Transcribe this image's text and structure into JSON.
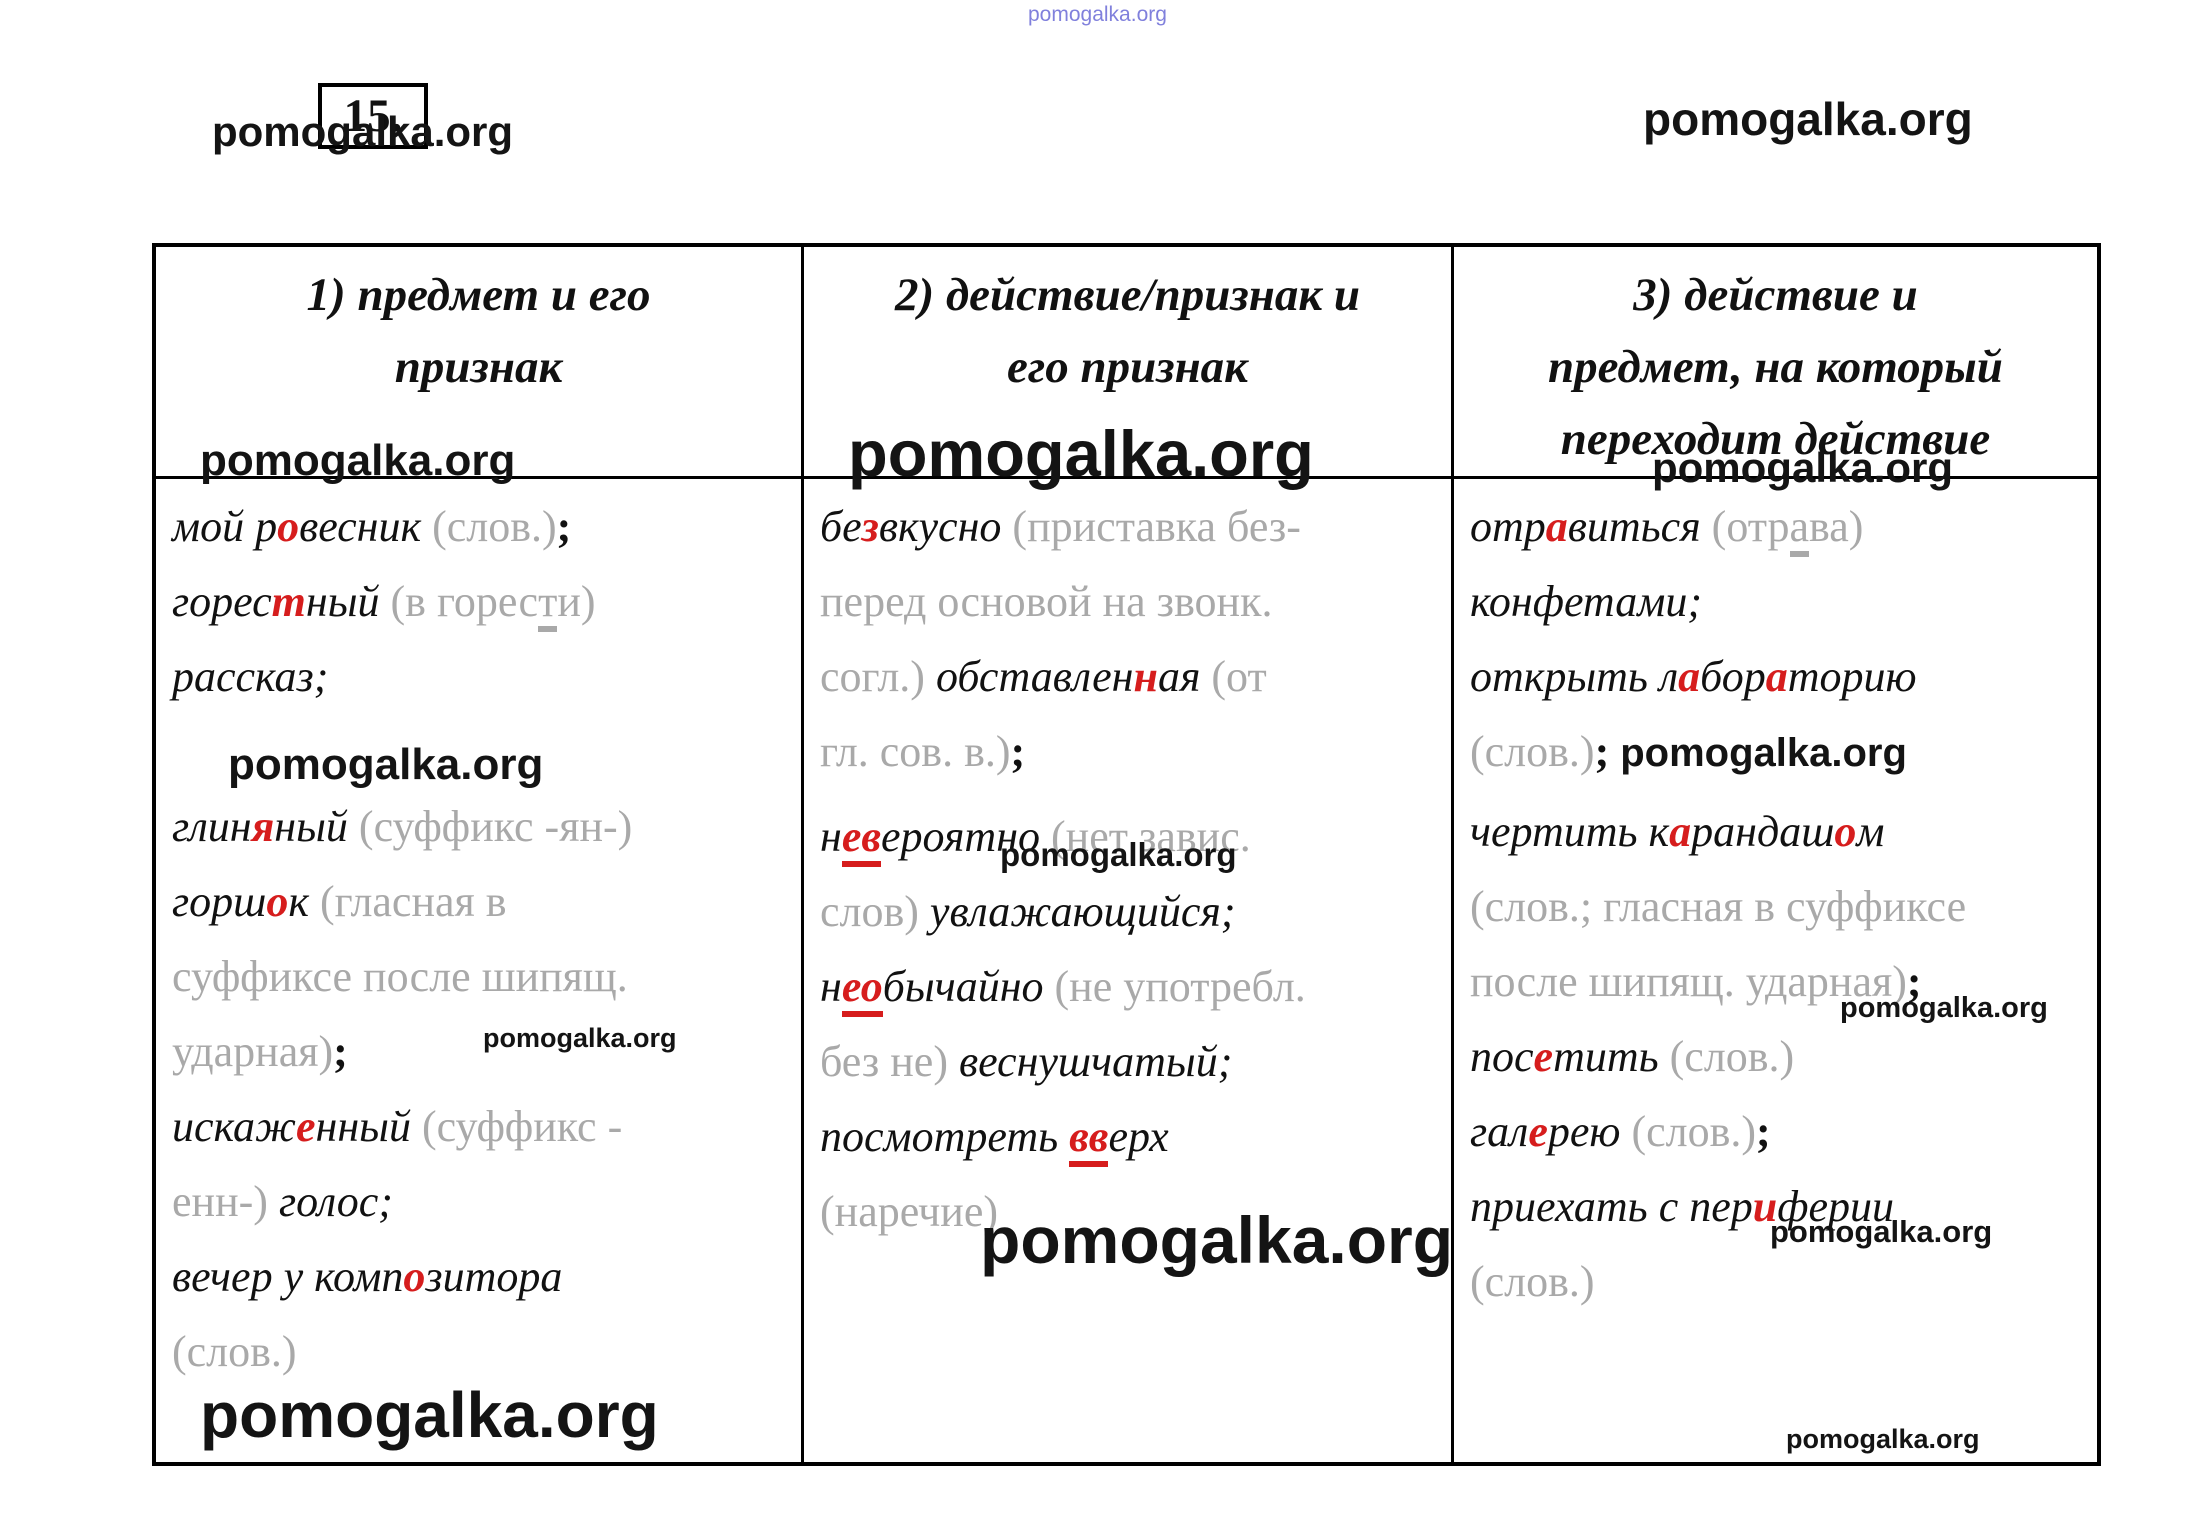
{
  "page": {
    "exercise_number": "15.",
    "watermark": "pomogalka.org"
  },
  "table": {
    "columns": [
      {
        "header_lines": [
          "1) предмет и его",
          "признак"
        ],
        "lines": [
          {
            "seg": [
              [
                "n",
                "мой р"
              ],
              [
                "r",
                "о"
              ],
              [
                "n",
                "весник "
              ],
              [
                "g",
                "(слов.)"
              ],
              [
                "k",
                ";"
              ]
            ]
          },
          {
            "seg": [
              [
                "n",
                "горес"
              ],
              [
                "r",
                "т"
              ],
              [
                "n",
                "ный "
              ],
              [
                "g",
                "(в горес"
              ],
              [
                "gu",
                "т"
              ],
              [
                "g",
                "и)"
              ]
            ]
          },
          {
            "seg": [
              [
                "n",
                "рассказ;"
              ]
            ]
          },
          {
            "cls": "sp",
            "seg": []
          },
          {
            "seg": [
              [
                "n",
                "глин"
              ],
              [
                "r",
                "я"
              ],
              [
                "n",
                "ный "
              ],
              [
                "g",
                "(суффикс -ян-)"
              ]
            ]
          },
          {
            "seg": [
              [
                "n",
                "горш"
              ],
              [
                "r",
                "о"
              ],
              [
                "n",
                "к "
              ],
              [
                "g",
                "(гласная в"
              ]
            ]
          },
          {
            "seg": [
              [
                "g",
                "суффиксе после шипящ."
              ]
            ]
          },
          {
            "seg": [
              [
                "g",
                "ударная)"
              ],
              [
                "k",
                ";"
              ]
            ]
          },
          {
            "seg": [
              [
                "n",
                "искаж"
              ],
              [
                "r",
                "е"
              ],
              [
                "n",
                "нный "
              ],
              [
                "g",
                "(суффикс -"
              ]
            ]
          },
          {
            "seg": [
              [
                "g",
                "енн-) "
              ],
              [
                "n",
                "голос;"
              ]
            ]
          },
          {
            "seg": [
              [
                "n",
                "вечер у комп"
              ],
              [
                "r",
                "о"
              ],
              [
                "n",
                "зитора"
              ]
            ]
          },
          {
            "seg": [
              [
                "g",
                "(слов.)"
              ]
            ]
          }
        ]
      },
      {
        "header_lines": [
          "2) действие/признак и",
          "его признак"
        ],
        "lines": [
          {
            "seg": [
              [
                "n",
                "бе"
              ],
              [
                "r",
                "з"
              ],
              [
                "n",
                "вкусно "
              ],
              [
                "g",
                "(приставка без-"
              ]
            ]
          },
          {
            "seg": [
              [
                "g",
                "перед основой на звонк."
              ]
            ]
          },
          {
            "seg": [
              [
                "g",
                "согл.) "
              ],
              [
                "n",
                "обставлен"
              ],
              [
                "r",
                "н"
              ],
              [
                "n",
                "ая "
              ],
              [
                "g",
                "(от"
              ]
            ]
          },
          {
            "seg": [
              [
                "g",
                "гл. сов. в.)"
              ],
              [
                "k",
                ";"
              ]
            ]
          },
          {
            "cls": "mt1",
            "seg": [
              [
                "n",
                "н"
              ],
              [
                "ru",
                "ев"
              ],
              [
                "n",
                "ероятно "
              ],
              [
                "g",
                "(нет завис."
              ]
            ]
          },
          {
            "seg": [
              [
                "g",
                "слов) "
              ],
              [
                "n",
                "увлажающийся;"
              ]
            ]
          },
          {
            "seg": [
              [
                "n",
                "н"
              ],
              [
                "ru",
                "ео"
              ],
              [
                "n",
                "бычайно "
              ],
              [
                "g",
                "(не употребл."
              ]
            ]
          },
          {
            "seg": [
              [
                "g",
                "без не) "
              ],
              [
                "n",
                "веснушчатый;"
              ]
            ]
          },
          {
            "seg": [
              [
                "n",
                "посмотреть "
              ],
              [
                "ru",
                "вв"
              ],
              [
                "n",
                "ерх"
              ]
            ]
          },
          {
            "seg": [
              [
                "g",
                "(наречие)"
              ]
            ]
          }
        ]
      },
      {
        "header_lines": [
          "3) действие и",
          "предмет, на который",
          "переходит действие"
        ],
        "lines": [
          {
            "seg": [
              [
                "n",
                "отр"
              ],
              [
                "r",
                "а"
              ],
              [
                "n",
                "виться "
              ],
              [
                "g",
                "(отр"
              ],
              [
                "gu",
                "а"
              ],
              [
                "g",
                "ва)"
              ]
            ]
          },
          {
            "seg": [
              [
                "n",
                "конфетами;"
              ]
            ]
          },
          {
            "seg": [
              [
                "n",
                "открыть л"
              ],
              [
                "r",
                "а"
              ],
              [
                "n",
                "бор"
              ],
              [
                "r",
                "а"
              ],
              [
                "n",
                "торию"
              ]
            ]
          },
          {
            "seg": [
              [
                "g",
                "(слов.)"
              ],
              [
                "k",
                "; "
              ],
              [
                "w",
                "pomogalka.org"
              ]
            ]
          },
          {
            "cls": "mt2",
            "seg": [
              [
                "n",
                "чертить к"
              ],
              [
                "r",
                "а"
              ],
              [
                "n",
                "рандаш"
              ],
              [
                "r",
                "о"
              ],
              [
                "n",
                "м"
              ]
            ]
          },
          {
            "seg": [
              [
                "g",
                "(слов.; гласная в суффиксе"
              ]
            ]
          },
          {
            "seg": [
              [
                "g",
                "после шипящ. ударная)"
              ],
              [
                "k",
                ";"
              ]
            ]
          },
          {
            "seg": [
              [
                "n",
                "пос"
              ],
              [
                "r",
                "е"
              ],
              [
                "n",
                "тить "
              ],
              [
                "g",
                "(слов.)"
              ]
            ]
          },
          {
            "seg": [
              [
                "n",
                "гал"
              ],
              [
                "r",
                "е"
              ],
              [
                "n",
                "рею "
              ],
              [
                "g",
                "(слов.)"
              ],
              [
                "k",
                ";"
              ]
            ]
          },
          {
            "seg": [
              [
                "n",
                "приехать с пер"
              ],
              [
                "r",
                "и"
              ],
              [
                "n",
                "ферии"
              ]
            ]
          },
          {
            "seg": [
              [
                "g",
                "(слов.)"
              ]
            ]
          }
        ]
      }
    ]
  }
}
